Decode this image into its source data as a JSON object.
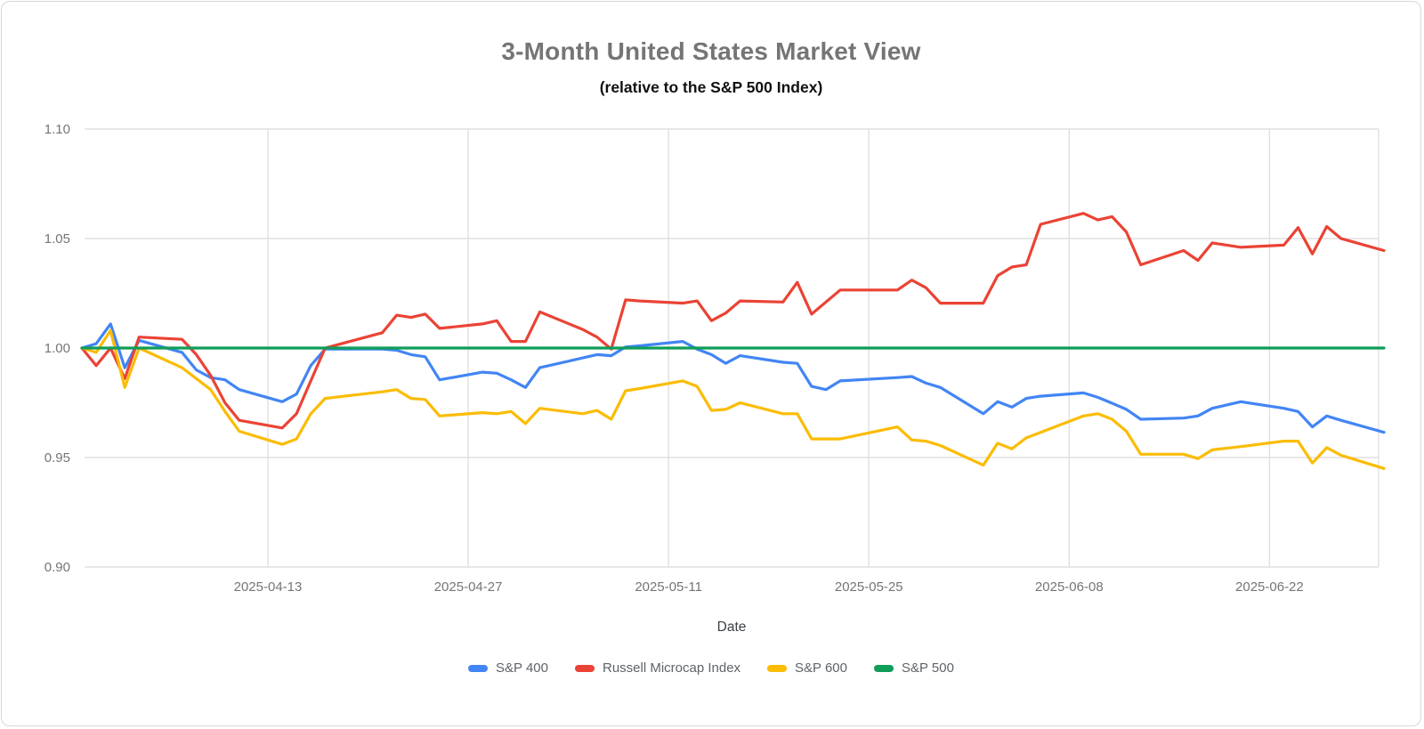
{
  "header": {
    "title": "3-Month United States Market View",
    "subtitle": "(relative to the S&P 500 Index)"
  },
  "colors": {
    "grid": "#e0e0e0",
    "axis_text": "#757575",
    "title_text": "#757575",
    "subtitle_text": "#111111",
    "legend_text": "#5f6368",
    "background": "#ffffff"
  },
  "chart_data": {
    "type": "line",
    "title": "3-Month United States Market View",
    "subtitle": "(relative to the S&P 500 Index)",
    "xlabel": "Date",
    "ylabel": "",
    "grid": true,
    "legend_position": "bottom",
    "ylim": [
      0.9,
      1.1
    ],
    "y_ticks": [
      {
        "value": 1.1,
        "label": "1.10"
      },
      {
        "value": 1.05,
        "label": "1.05"
      },
      {
        "value": 1.0,
        "label": "1.00"
      },
      {
        "value": 0.95,
        "label": "0.95"
      },
      {
        "value": 0.9,
        "label": "0.90"
      }
    ],
    "x_ticks": [
      "2025-04-13",
      "2025-04-27",
      "2025-05-11",
      "2025-05-25",
      "2025-06-08",
      "2025-06-22"
    ],
    "x_range": [
      "2025-03-31",
      "2025-06-30"
    ],
    "x": [
      "2025-03-31",
      "2025-04-01",
      "2025-04-02",
      "2025-04-03",
      "2025-04-04",
      "2025-04-07",
      "2025-04-08",
      "2025-04-09",
      "2025-04-10",
      "2025-04-11",
      "2025-04-14",
      "2025-04-15",
      "2025-04-16",
      "2025-04-17",
      "2025-04-21",
      "2025-04-22",
      "2025-04-23",
      "2025-04-24",
      "2025-04-25",
      "2025-04-28",
      "2025-04-29",
      "2025-04-30",
      "2025-05-01",
      "2025-05-02",
      "2025-05-05",
      "2025-05-06",
      "2025-05-07",
      "2025-05-08",
      "2025-05-09",
      "2025-05-12",
      "2025-05-13",
      "2025-05-14",
      "2025-05-15",
      "2025-05-16",
      "2025-05-19",
      "2025-05-20",
      "2025-05-21",
      "2025-05-22",
      "2025-05-23",
      "2025-05-27",
      "2025-05-28",
      "2025-05-29",
      "2025-05-30",
      "2025-06-02",
      "2025-06-03",
      "2025-06-04",
      "2025-06-05",
      "2025-06-06",
      "2025-06-09",
      "2025-06-10",
      "2025-06-11",
      "2025-06-12",
      "2025-06-13",
      "2025-06-16",
      "2025-06-17",
      "2025-06-18",
      "2025-06-20",
      "2025-06-23",
      "2025-06-24",
      "2025-06-25",
      "2025-06-26",
      "2025-06-27",
      "2025-06-30"
    ],
    "series": [
      {
        "name": "S&P 400",
        "key": "sp400",
        "color": "#4285F4",
        "values": [
          1.0,
          1.002,
          1.011,
          0.991,
          1.0035,
          0.998,
          0.99,
          0.9865,
          0.9855,
          0.981,
          0.9755,
          0.979,
          0.992,
          0.9995,
          0.9995,
          0.999,
          0.997,
          0.996,
          0.9855,
          0.989,
          0.9885,
          0.9855,
          0.982,
          0.991,
          0.9955,
          0.997,
          0.9965,
          1.0005,
          1.001,
          1.003,
          0.9995,
          0.997,
          0.993,
          0.9965,
          0.9935,
          0.993,
          0.9825,
          0.981,
          0.985,
          0.9865,
          0.987,
          0.984,
          0.982,
          0.97,
          0.9755,
          0.973,
          0.977,
          0.978,
          0.9795,
          0.9775,
          0.9748,
          0.972,
          0.9675,
          0.968,
          0.969,
          0.9725,
          0.9755,
          0.9725,
          0.971,
          0.964,
          0.969,
          0.967,
          0.9615
        ]
      },
      {
        "name": "Russell Microcap Index",
        "key": "russell_microcap",
        "color": "#EA4335",
        "values": [
          1.0,
          0.992,
          1.0,
          0.986,
          1.005,
          1.004,
          0.997,
          0.9875,
          0.975,
          0.967,
          0.9635,
          0.97,
          0.985,
          1.0,
          1.007,
          1.015,
          1.014,
          1.0155,
          1.009,
          1.011,
          1.0125,
          1.003,
          1.003,
          1.0165,
          1.0085,
          1.005,
          0.9995,
          1.022,
          1.0215,
          1.0205,
          1.0215,
          1.0125,
          1.016,
          1.0215,
          1.021,
          1.03,
          1.0155,
          1.021,
          1.0265,
          1.0265,
          1.031,
          1.0275,
          1.0205,
          1.0205,
          1.033,
          1.037,
          1.038,
          1.0565,
          1.0615,
          1.0585,
          1.06,
          1.053,
          1.038,
          1.0445,
          1.04,
          1.048,
          1.046,
          1.047,
          1.055,
          1.043,
          1.0555,
          1.05,
          1.0445
        ]
      },
      {
        "name": "S&P 600",
        "key": "sp600",
        "color": "#FBBC04",
        "values": [
          1.0,
          0.998,
          1.008,
          0.982,
          1.0,
          0.991,
          0.986,
          0.981,
          0.971,
          0.962,
          0.956,
          0.9585,
          0.97,
          0.977,
          0.98,
          0.981,
          0.977,
          0.9765,
          0.969,
          0.9705,
          0.97,
          0.971,
          0.9655,
          0.9725,
          0.97,
          0.9715,
          0.9675,
          0.9805,
          0.9815,
          0.985,
          0.9825,
          0.9715,
          0.972,
          0.975,
          0.97,
          0.97,
          0.9585,
          0.9585,
          0.9585,
          0.964,
          0.958,
          0.9575,
          0.9555,
          0.9465,
          0.9565,
          0.954,
          0.959,
          0.9615,
          0.969,
          0.97,
          0.9675,
          0.962,
          0.9515,
          0.9515,
          0.9495,
          0.9535,
          0.955,
          0.9575,
          0.9575,
          0.9475,
          0.9545,
          0.951,
          0.945
        ]
      },
      {
        "name": "S&P 500",
        "key": "sp500",
        "color": "#0F9D58",
        "constant_value": 1.0
      }
    ]
  },
  "xaxis": {
    "title": "Date"
  },
  "legend": {
    "items": [
      {
        "label": "S&P 400",
        "color": "#4285F4"
      },
      {
        "label": "Russell Microcap Index",
        "color": "#EA4335"
      },
      {
        "label": "S&P 600",
        "color": "#FBBC04"
      },
      {
        "label": "S&P 500",
        "color": "#0F9D58"
      }
    ]
  }
}
